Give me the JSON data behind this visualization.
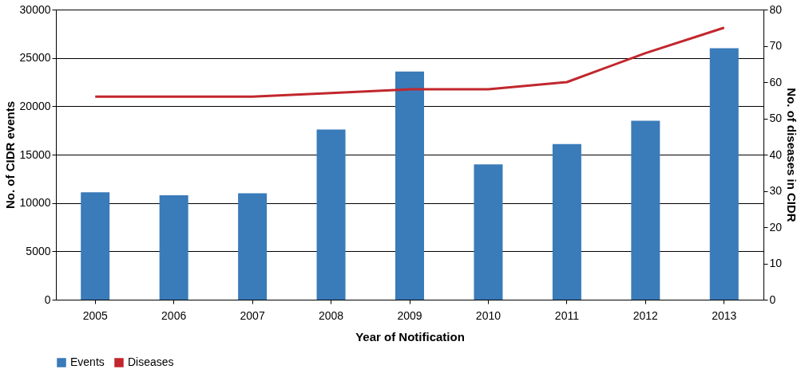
{
  "chart_data": {
    "type": "bar",
    "xlabel": "Year of Notification",
    "ylabel": "No. of CIDR events",
    "y2label": "No. of diseases in CIDR",
    "categories": [
      "2005",
      "2006",
      "2007",
      "2008",
      "2009",
      "2010",
      "2011",
      "2012",
      "2013"
    ],
    "series": [
      {
        "name": "Events",
        "color": "#3a7bb9",
        "values": [
          11100,
          10800,
          11000,
          17600,
          23600,
          14000,
          16100,
          18500,
          26000
        ]
      },
      {
        "name": "Diseases",
        "type": "line",
        "axis": "y2",
        "color": "#c1272d",
        "values": [
          56,
          56,
          56,
          57,
          58,
          58,
          60,
          68,
          75
        ]
      }
    ],
    "ylim": [
      0,
      30000
    ],
    "yticks": [
      0,
      5000,
      10000,
      15000,
      20000,
      25000,
      30000
    ],
    "y2lim": [
      0,
      80
    ],
    "y2ticks": [
      0,
      10,
      20,
      30,
      40,
      50,
      60,
      70,
      80
    ],
    "grid": "y",
    "legend": "bottom",
    "marker": "none",
    "line_style": "solid"
  }
}
